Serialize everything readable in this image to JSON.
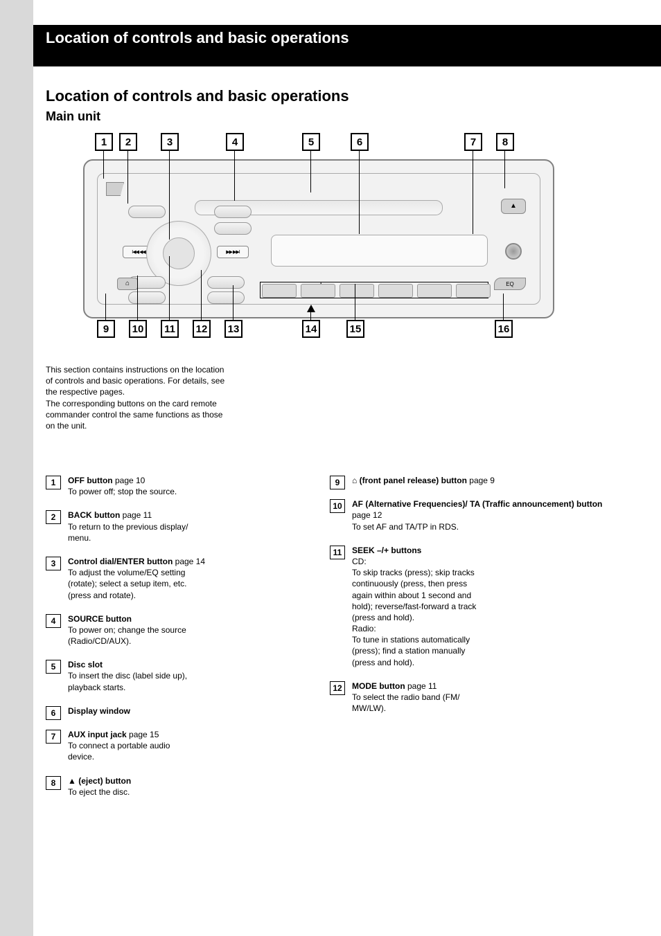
{
  "chapter_title": "Location of controls and basic operations",
  "heading_main": "Location of controls and basic operations",
  "heading_sub": "Main unit",
  "intro_lines": [
    "This section contains instructions on the location",
    "of controls and basic operations. For details, see",
    "the respective pages.",
    "The corresponding buttons on the card remote",
    "commander control the same functions as those",
    "on the unit."
  ],
  "diagram": {
    "seek_left_glyph": "I◀◀ ◀◀",
    "seek_right_glyph": "▶▶ ▶▶I",
    "eject_glyph": "▲",
    "release_glyph": "⌂",
    "eq_label": "EQ",
    "preset_minus": "–",
    "preset_plus": "+",
    "preset_center_dot": "◦"
  },
  "callouts_top": [
    "1",
    "2",
    "3",
    "4",
    "5",
    "6",
    "7",
    "8"
  ],
  "callouts_bottom": [
    "9",
    "10",
    "11",
    "12",
    "13",
    "14",
    "15",
    "16"
  ],
  "entries_left": [
    {
      "n": "1",
      "title": "OFF button",
      "page": "page 10",
      "body": "To power off; stop the source."
    },
    {
      "n": "2",
      "title": "BACK button",
      "page": "page 11",
      "body": "To return to the previous display/\nmenu."
    },
    {
      "n": "3",
      "title": "Control dial/ENTER button",
      "page": "page 14",
      "body": "To adjust the volume/EQ setting\n(rotate); select a setup item, etc.\n(press and rotate)."
    },
    {
      "n": "4",
      "title": "SOURCE button",
      "page": "",
      "body": "To power on; change the source\n(Radio/CD/AUX)."
    },
    {
      "n": "5",
      "title": "Disc slot",
      "page": "",
      "body": "To insert the disc (label side up),\nplayback starts."
    },
    {
      "n": "6",
      "title": "Display window",
      "page": "",
      "body": ""
    },
    {
      "n": "7",
      "title": "AUX input jack",
      "page": "page 15",
      "body": "To connect a portable audio\ndevice."
    },
    {
      "n": "8",
      "title_prefix": "",
      "eject": true,
      "title": " (eject) button",
      "page": "",
      "body": "To eject the disc."
    }
  ],
  "entries_right": [
    {
      "n": "9",
      "release": true,
      "title_prefix": "",
      "title": " (front panel release)\nbutton",
      "page": "page 9",
      "body": ""
    },
    {
      "n": "10",
      "title": "AF (Alternative Frequencies)/\nTA (Traffic announcement)\nbutton",
      "page": "page 12",
      "body": "To set AF and TA/TP in RDS."
    },
    {
      "n": "11",
      "title": "SEEK –/+ buttons",
      "page": "",
      "body": "CD:\nTo skip tracks (press); skip tracks\ncontinuously (press, then press\nagain within about 1 second and\nhold); reverse/fast-forward a track\n(press and hold).\nRadio:\nTo tune in stations automatically\n(press); find a station manually\n(press and hold)."
    },
    {
      "n": "12",
      "title": "MODE button",
      "page": "page 11",
      "body": "To select the radio band (FM/\nMW/LW)."
    }
  ]
}
